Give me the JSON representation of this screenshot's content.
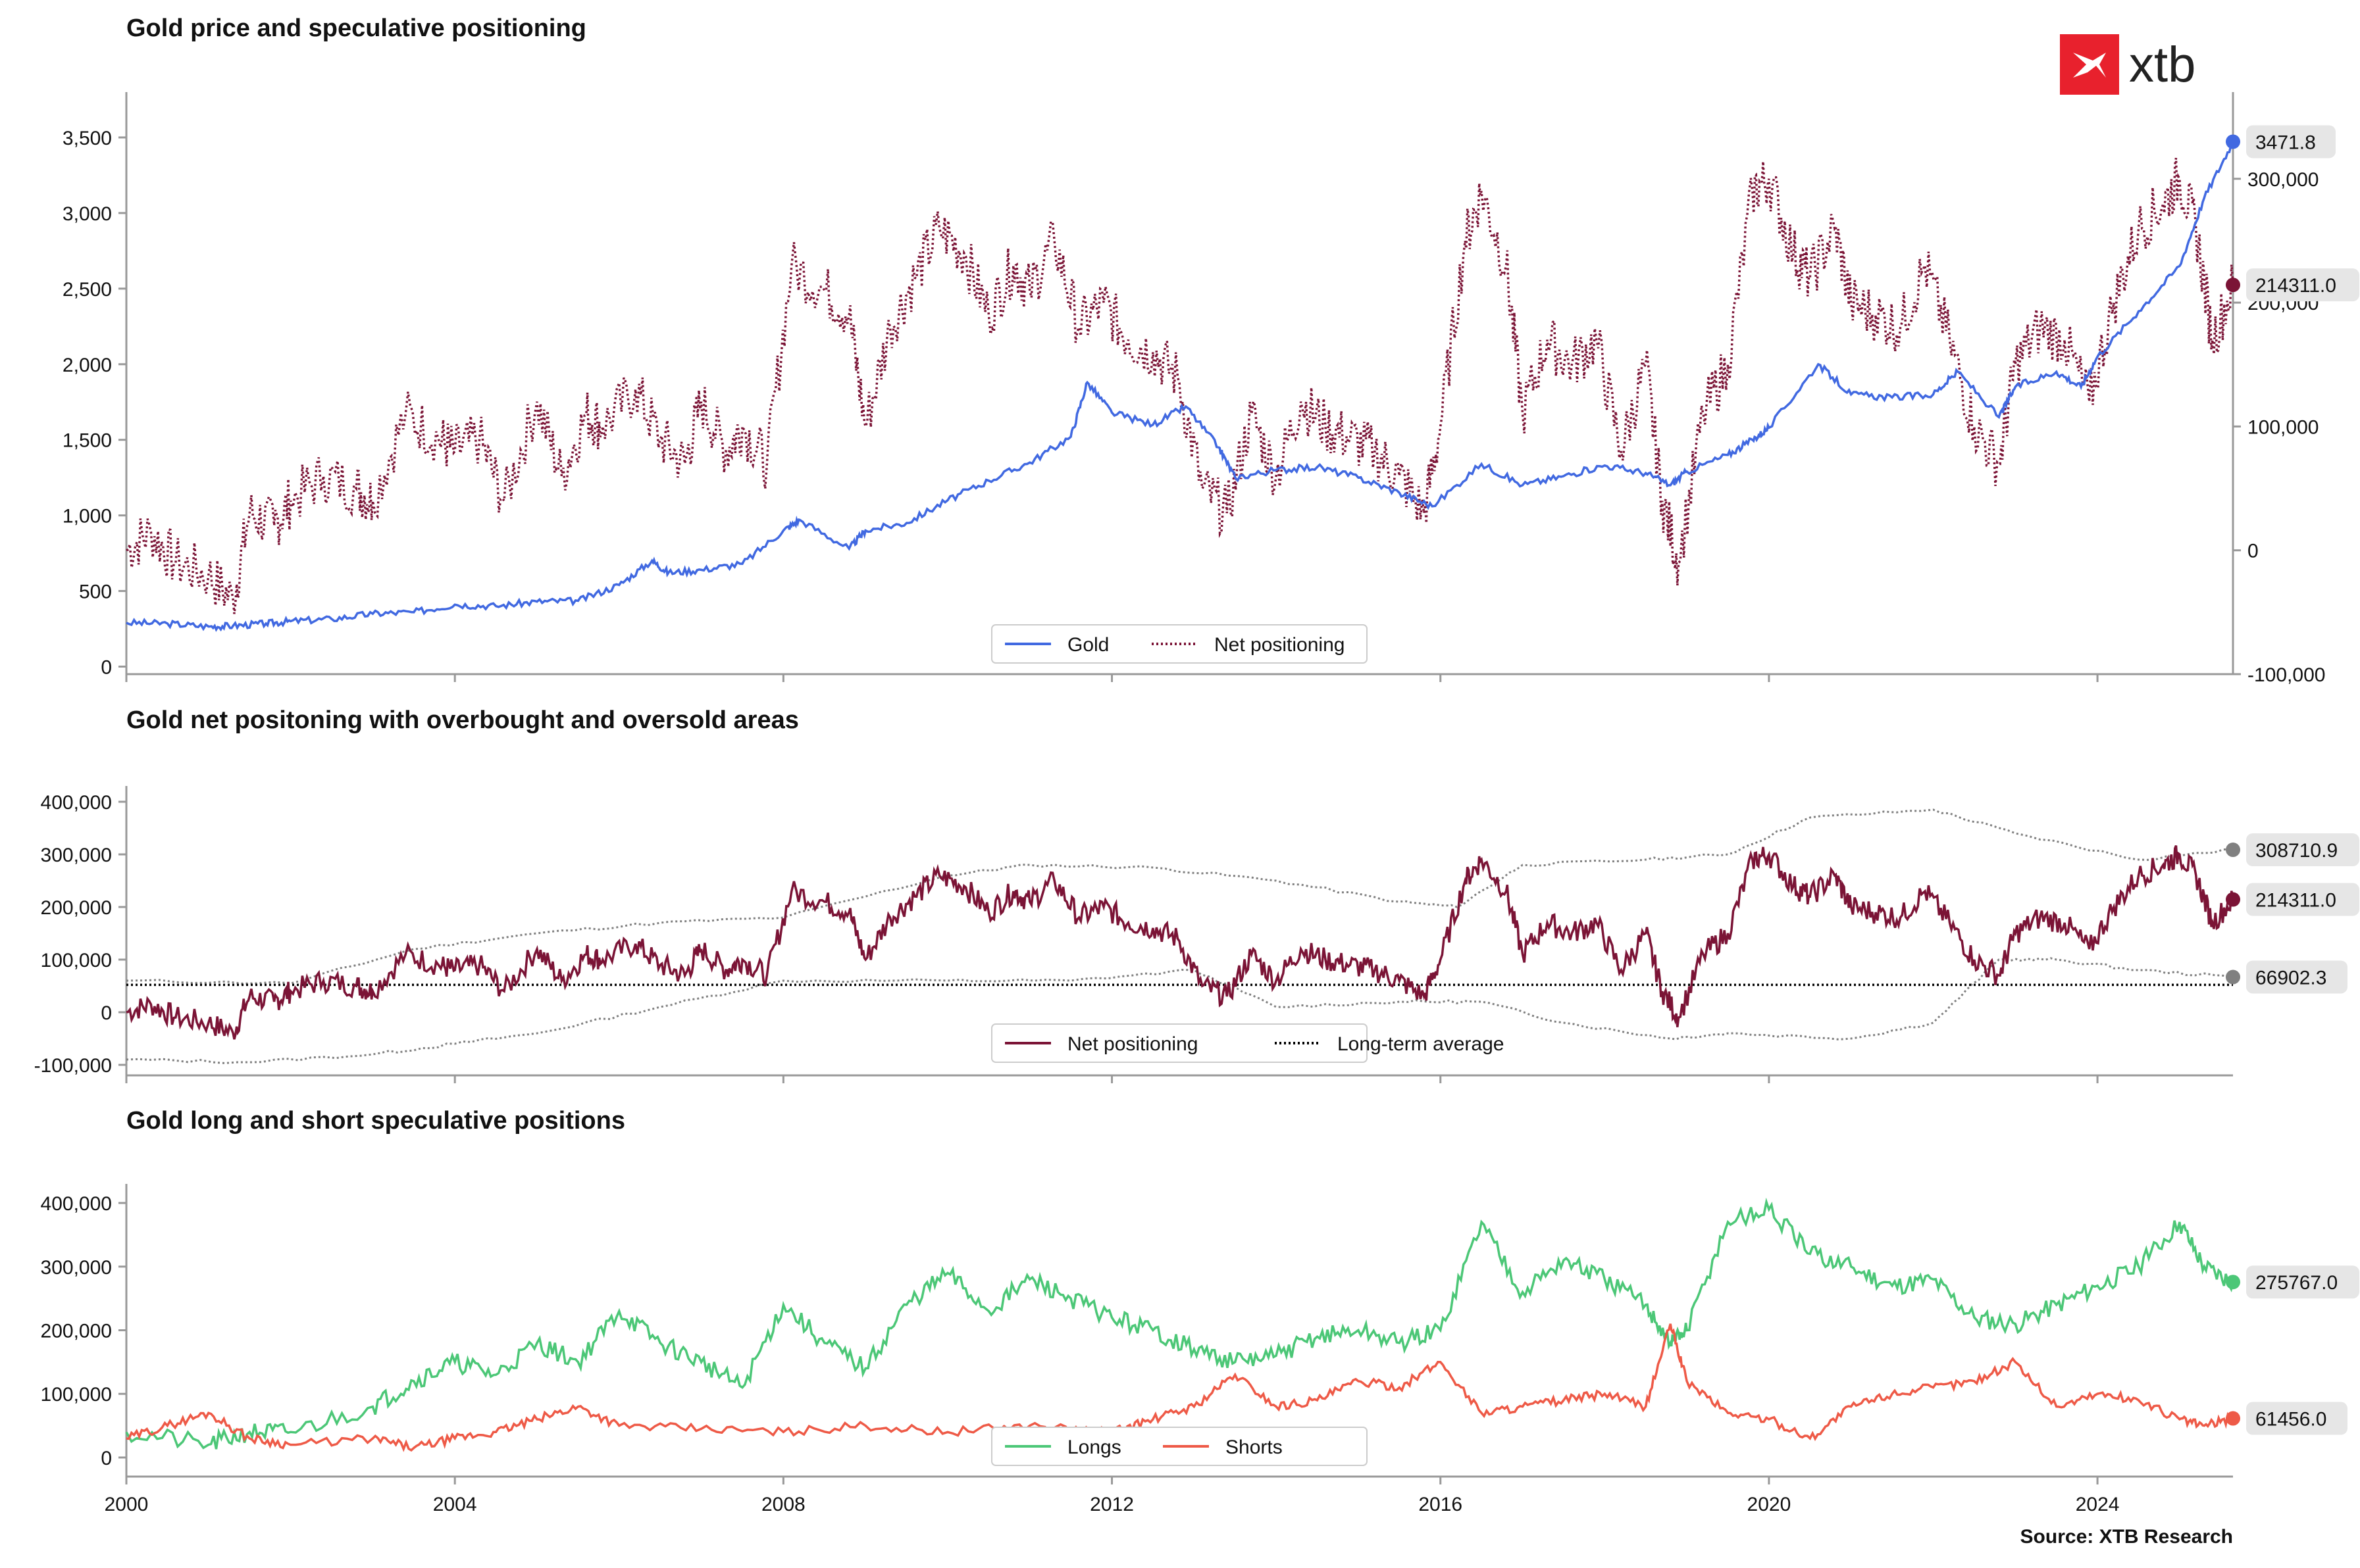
{
  "brand": {
    "name": "xtb",
    "color": "#e8212d",
    "icon": "xtb-x-logo"
  },
  "source": "Source: XTB Research",
  "colors": {
    "gold": "#4169e1",
    "net": "#7b1436",
    "avg": "#000000",
    "band": "#808080",
    "longs": "#4cc777",
    "shorts": "#ee5a47",
    "label_bg": "#e6e6e6"
  },
  "chart_data": [
    {
      "type": "line",
      "title": "Gold price and speculative positioning",
      "x_range": [
        2000,
        2025.65
      ],
      "y_left": {
        "range": [
          -50,
          3800
        ],
        "ticks": [
          "0",
          "500",
          "1,000",
          "1,500",
          "2,000",
          "2,500",
          "3,000",
          "3,500"
        ],
        "tick_values": [
          0,
          500,
          1000,
          1500,
          2000,
          2500,
          3000,
          3500
        ]
      },
      "y_right": {
        "range": [
          -100000,
          370000
        ],
        "ticks": [
          "-100,000",
          "0",
          "100,000",
          "200,000",
          "300,000"
        ],
        "tick_values": [
          -100000,
          0,
          100000,
          200000,
          300000
        ]
      },
      "legend": [
        "Gold",
        "Net positioning"
      ],
      "legend_position": "lower center",
      "series": [
        {
          "name": "Gold",
          "axis": "left",
          "style": "solid",
          "color": "#4169e1",
          "x": [
            2000.0,
            2000.5,
            2001.0,
            2001.3,
            2001.7,
            2002.0,
            2002.5,
            2003.0,
            2003.5,
            2004.0,
            2004.5,
            2005.0,
            2005.5,
            2006.0,
            2006.4,
            2006.6,
            2007.0,
            2007.5,
            2008.0,
            2008.2,
            2008.8,
            2009.0,
            2009.5,
            2010.0,
            2010.5,
            2011.0,
            2011.5,
            2011.7,
            2012.0,
            2012.5,
            2012.9,
            2013.3,
            2013.5,
            2014.0,
            2014.5,
            2015.0,
            2015.5,
            2015.9,
            2016.5,
            2017.0,
            2017.5,
            2018.0,
            2018.5,
            2018.8,
            2019.0,
            2019.5,
            2019.8,
            2020.0,
            2020.6,
            2021.0,
            2021.5,
            2022.0,
            2022.3,
            2022.8,
            2023.0,
            2023.5,
            2023.8,
            2024.0,
            2024.5,
            2025.0,
            2025.3,
            2025.65
          ],
          "y": [
            290,
            285,
            265,
            270,
            285,
            300,
            315,
            350,
            360,
            410,
            400,
            430,
            435,
            540,
            700,
            620,
            640,
            680,
            900,
            970,
            780,
            900,
            950,
            1100,
            1230,
            1350,
            1520,
            1880,
            1680,
            1600,
            1720,
            1450,
            1250,
            1300,
            1320,
            1250,
            1150,
            1060,
            1340,
            1200,
            1260,
            1330,
            1280,
            1200,
            1290,
            1400,
            1500,
            1580,
            2000,
            1800,
            1780,
            1800,
            1950,
            1650,
            1850,
            1950,
            1850,
            2050,
            2350,
            2650,
            3100,
            3471.8
          ]
        },
        {
          "name": "Net positioning",
          "axis": "right",
          "style": "dotted",
          "color": "#7b1436",
          "x": [
            2000.0,
            2000.3,
            2000.6,
            2001.0,
            2001.3,
            2001.5,
            2001.8,
            2002.0,
            2002.4,
            2002.8,
            2003.0,
            2003.4,
            2003.8,
            2004.0,
            2004.3,
            2004.6,
            2005.0,
            2005.3,
            2005.6,
            2005.8,
            2006.2,
            2006.5,
            2006.8,
            2007.0,
            2007.3,
            2007.5,
            2007.8,
            2008.1,
            2008.5,
            2008.8,
            2009.0,
            2009.3,
            2009.6,
            2009.9,
            2010.2,
            2010.5,
            2010.8,
            2011.0,
            2011.3,
            2011.6,
            2011.9,
            2012.2,
            2012.5,
            2012.8,
            2013.1,
            2013.4,
            2013.7,
            2014.0,
            2014.3,
            2014.6,
            2014.9,
            2015.2,
            2015.5,
            2015.8,
            2016.0,
            2016.3,
            2016.5,
            2016.8,
            2017.0,
            2017.3,
            2017.6,
            2017.9,
            2018.2,
            2018.5,
            2018.7,
            2018.9,
            2019.2,
            2019.5,
            2019.8,
            2020.0,
            2020.3,
            2020.5,
            2020.8,
            2021.0,
            2021.3,
            2021.6,
            2021.9,
            2022.2,
            2022.5,
            2022.8,
            2023.0,
            2023.3,
            2023.6,
            2023.9,
            2024.2,
            2024.5,
            2024.8,
            2025.0,
            2025.2,
            2025.4,
            2025.65
          ],
          "y": [
            0,
            15000,
            -10000,
            -20000,
            -40000,
            30000,
            20000,
            40000,
            60000,
            50000,
            40000,
            110000,
            90000,
            80000,
            90000,
            40000,
            120000,
            60000,
            110000,
            100000,
            130000,
            90000,
            70000,
            120000,
            80000,
            100000,
            70000,
            230000,
            210000,
            190000,
            100000,
            180000,
            220000,
            260000,
            240000,
            190000,
            230000,
            210000,
            250000,
            180000,
            200000,
            170000,
            160000,
            140000,
            50000,
            30000,
            110000,
            60000,
            120000,
            100000,
            90000,
            80000,
            60000,
            30000,
            100000,
            250000,
            290000,
            230000,
            110000,
            170000,
            150000,
            170000,
            80000,
            150000,
            40000,
            -10000,
            110000,
            150000,
            290000,
            300000,
            240000,
            220000,
            260000,
            200000,
            190000,
            180000,
            230000,
            170000,
            100000,
            70000,
            150000,
            180000,
            170000,
            120000,
            200000,
            260000,
            280000,
            300000,
            260000,
            170000,
            214311
          ]
        }
      ],
      "end_labels": [
        "3471.8",
        "214311.0"
      ]
    },
    {
      "type": "line",
      "title": "Gold net positoning with overbought and oversold areas",
      "x_range": [
        2000,
        2025.65
      ],
      "y": {
        "range": [
          -120000,
          430000
        ],
        "ticks": [
          "-100,000",
          "0",
          "100,000",
          "200,000",
          "300,000",
          "400,000"
        ],
        "tick_values": [
          -100000,
          0,
          100000,
          200000,
          300000,
          400000
        ]
      },
      "legend": [
        "Net positioning",
        "Long-term average"
      ],
      "legend_position": "lower center",
      "long_term_average": 52000,
      "series": [
        {
          "name": "Net positioning",
          "style": "solid",
          "color": "#7b1436",
          "source": "chart_data.0.series.1"
        },
        {
          "name": "Upper band",
          "style": "dotted",
          "color": "#808080",
          "x": [
            2000.0,
            2002.0,
            2003.5,
            2005.0,
            2006.5,
            2008.0,
            2010.0,
            2011.0,
            2012.5,
            2014.0,
            2015.5,
            2016.2,
            2017.0,
            2018.5,
            2019.5,
            2020.5,
            2022.0,
            2023.0,
            2024.5,
            2025.65
          ],
          "y": [
            60000,
            55000,
            120000,
            150000,
            170000,
            180000,
            260000,
            280000,
            275000,
            250000,
            210000,
            200000,
            280000,
            290000,
            300000,
            370000,
            385000,
            340000,
            290000,
            308710.9
          ]
        },
        {
          "name": "Lower band",
          "style": "dotted",
          "color": "#808080",
          "x": [
            2000.0,
            2001.5,
            2003.0,
            2004.0,
            2005.0,
            2006.5,
            2008.0,
            2010.0,
            2011.5,
            2013.0,
            2014.0,
            2015.5,
            2016.5,
            2017.5,
            2018.8,
            2019.5,
            2021.0,
            2022.0,
            2022.8,
            2023.5,
            2024.5,
            2025.65
          ],
          "y": [
            -90000,
            -95000,
            -80000,
            -60000,
            -40000,
            10000,
            60000,
            60000,
            60000,
            80000,
            10000,
            20000,
            20000,
            -20000,
            -50000,
            -40000,
            -50000,
            -20000,
            100000,
            100000,
            80000,
            66902.3
          ]
        }
      ],
      "end_labels": [
        "308710.9",
        "214311.0",
        "66902.3"
      ]
    },
    {
      "type": "line",
      "title": "Gold long and short speculative positions",
      "x_range": [
        2000,
        2025.65
      ],
      "x_ticks": [
        "2000",
        "2004",
        "2008",
        "2012",
        "2016",
        "2020",
        "2024"
      ],
      "x_tick_values": [
        2000,
        2004,
        2008,
        2012,
        2016,
        2020,
        2024
      ],
      "y": {
        "range": [
          -30000,
          430000
        ],
        "ticks": [
          "0",
          "100,000",
          "200,000",
          "300,000",
          "400,000"
        ],
        "tick_values": [
          0,
          100000,
          200000,
          300000,
          400000
        ]
      },
      "legend": [
        "Longs",
        "Shorts"
      ],
      "legend_position": "lower center",
      "series": [
        {
          "name": "Longs",
          "style": "solid",
          "color": "#4cc777",
          "x": [
            2000.0,
            2001.0,
            2001.5,
            2002.0,
            2003.0,
            2003.5,
            2004.0,
            2004.5,
            2005.0,
            2005.5,
            2006.0,
            2006.5,
            2007.0,
            2007.5,
            2008.0,
            2008.5,
            2009.0,
            2009.5,
            2010.0,
            2010.5,
            2011.0,
            2011.5,
            2012.0,
            2012.5,
            2013.0,
            2013.5,
            2014.0,
            2014.5,
            2015.0,
            2015.5,
            2016.0,
            2016.5,
            2017.0,
            2017.5,
            2018.0,
            2018.5,
            2018.8,
            2019.0,
            2019.5,
            2020.0,
            2020.5,
            2021.0,
            2021.5,
            2022.0,
            2022.5,
            2023.0,
            2023.5,
            2024.0,
            2024.5,
            2025.0,
            2025.3,
            2025.65
          ],
          "y": [
            40000,
            20000,
            40000,
            40000,
            80000,
            120000,
            150000,
            130000,
            180000,
            150000,
            230000,
            180000,
            150000,
            110000,
            240000,
            180000,
            140000,
            240000,
            290000,
            230000,
            280000,
            250000,
            220000,
            200000,
            170000,
            150000,
            160000,
            190000,
            200000,
            180000,
            200000,
            370000,
            260000,
            310000,
            280000,
            240000,
            180000,
            200000,
            370000,
            390000,
            320000,
            300000,
            270000,
            280000,
            220000,
            210000,
            240000,
            270000,
            300000,
            370000,
            300000,
            275767
          ]
        },
        {
          "name": "Shorts",
          "style": "solid",
          "color": "#ee5a47",
          "x": [
            2000.0,
            2000.5,
            2001.0,
            2001.5,
            2002.0,
            2003.0,
            2003.5,
            2004.0,
            2004.5,
            2005.0,
            2005.5,
            2006.0,
            2007.0,
            2008.0,
            2009.0,
            2010.0,
            2011.0,
            2012.0,
            2012.5,
            2013.0,
            2013.5,
            2014.0,
            2014.5,
            2015.0,
            2015.5,
            2016.0,
            2016.5,
            2017.0,
            2017.5,
            2018.0,
            2018.5,
            2018.8,
            2019.0,
            2019.5,
            2020.0,
            2020.5,
            2021.0,
            2021.5,
            2022.0,
            2022.5,
            2023.0,
            2023.5,
            2024.0,
            2024.5,
            2025.0,
            2025.3,
            2025.65
          ],
          "y": [
            30000,
            50000,
            70000,
            30000,
            20000,
            30000,
            15000,
            30000,
            40000,
            60000,
            80000,
            50000,
            45000,
            40000,
            50000,
            40000,
            50000,
            40000,
            60000,
            80000,
            130000,
            80000,
            90000,
            120000,
            110000,
            150000,
            70000,
            80000,
            90000,
            100000,
            80000,
            210000,
            120000,
            70000,
            60000,
            30000,
            80000,
            100000,
            110000,
            120000,
            150000,
            80000,
            100000,
            90000,
            60000,
            50000,
            61456
          ]
        }
      ],
      "end_labels": [
        "275767.0",
        "61456.0"
      ]
    }
  ]
}
